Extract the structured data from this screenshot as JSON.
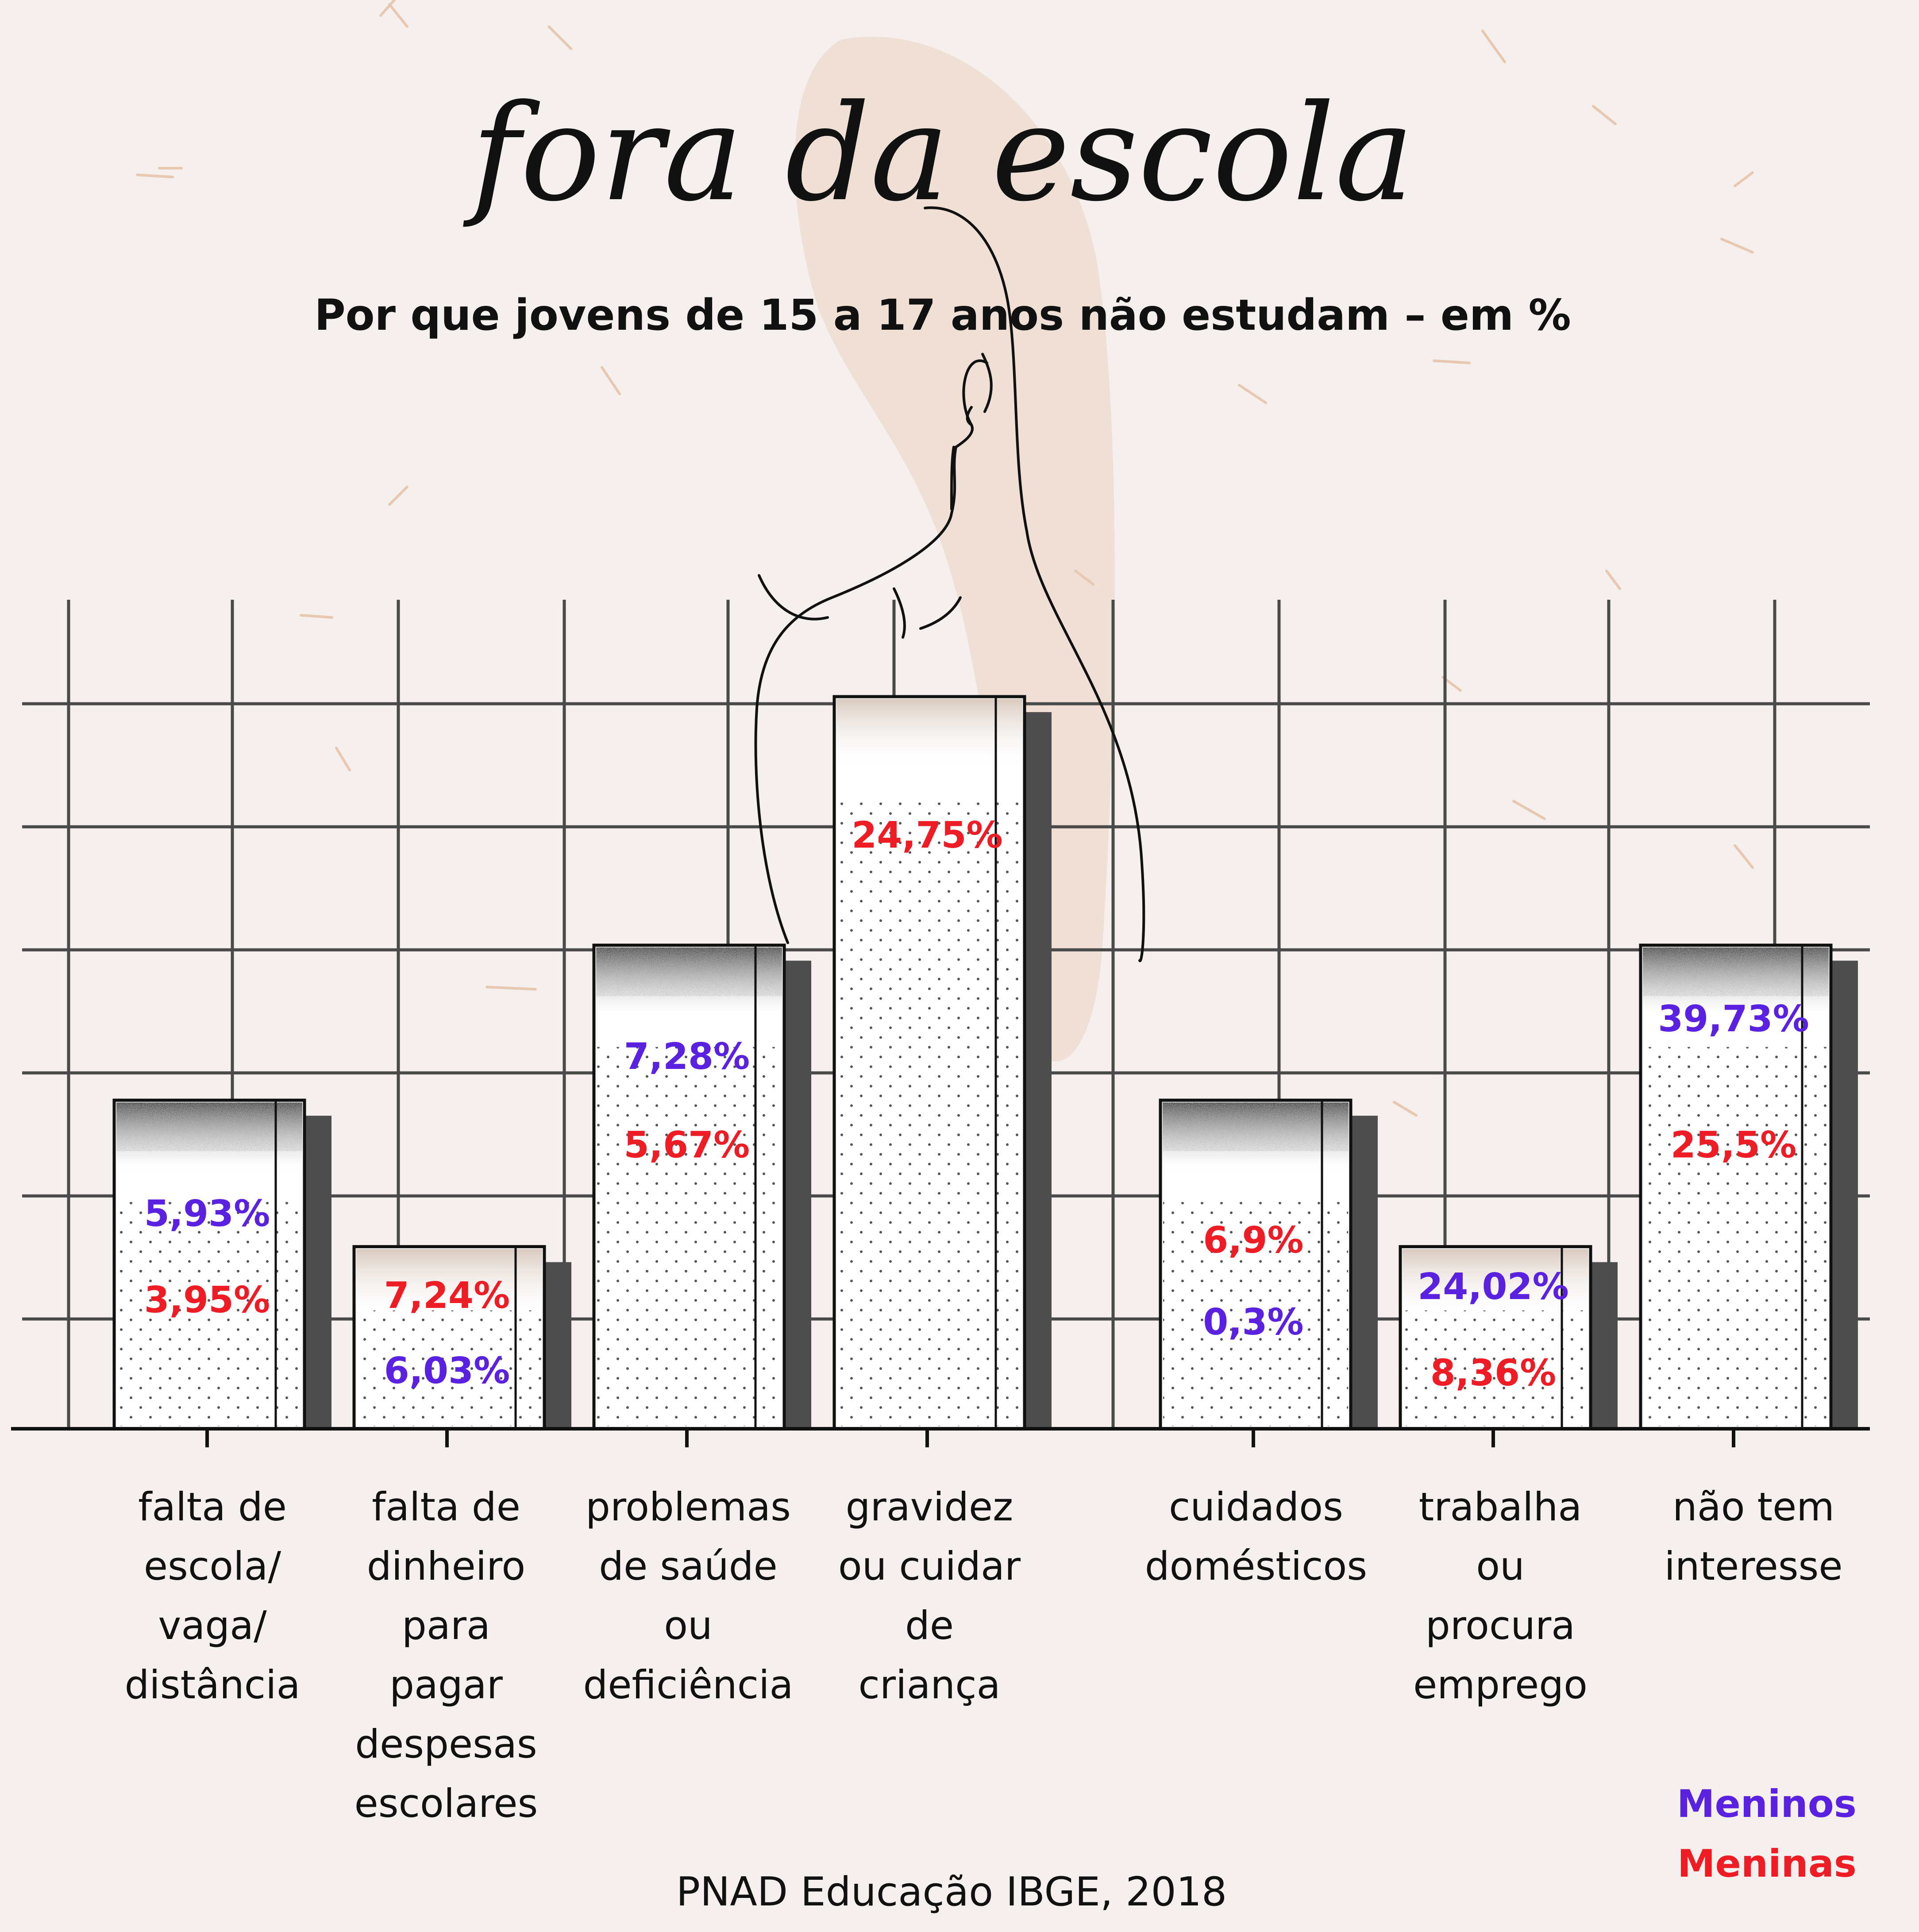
{
  "title": "fora da escola",
  "subtitle": "Por que jovens de 15 a 17 anos não estudam – em %",
  "source": "PNAD Educação IBGE, 2018",
  "colors": {
    "background": "#f5f0ee",
    "boys": "#5b21e0",
    "girls": "#ee1c25",
    "grid": "#4a4a4a",
    "axis": "#111111",
    "decor": "#eddccf"
  },
  "legend": {
    "placement": "bottom-right",
    "items": [
      {
        "label": "Meninos",
        "color": "#5b21e0"
      },
      {
        "label": "Meninas",
        "color": "#ee1c25"
      }
    ]
  },
  "chart_data": {
    "type": "bar",
    "grid": true,
    "categories": [
      [
        "falta de",
        "escola/",
        "vaga/",
        "distância"
      ],
      [
        "falta de",
        "dinheiro",
        "para",
        "pagar",
        "despesas",
        "escolares"
      ],
      [
        "problemas",
        "de saúde",
        "ou",
        "deficiência"
      ],
      [
        "gravidez",
        "ou cuidar",
        "de",
        "criança"
      ],
      [
        "cuidados",
        "domésticos"
      ],
      [
        "trabalha",
        "ou",
        "procura",
        "emprego"
      ],
      [
        "não tem",
        "interesse"
      ]
    ],
    "bar_heights_relative": [
      2.67,
      1.48,
      3.93,
      5.95,
      2.67,
      1.48,
      3.93
    ],
    "series": [
      {
        "name": "Meninos",
        "values": [
          5.93,
          6.03,
          7.28,
          null,
          0.3,
          24.02,
          39.73
        ],
        "labels": [
          "5,93%",
          "6,03%",
          "7,28%",
          "",
          "0,3%",
          "24,02%",
          "39,73%"
        ]
      },
      {
        "name": "Meninas",
        "values": [
          3.95,
          7.24,
          5.67,
          24.75,
          6.9,
          8.36,
          25.5
        ],
        "labels": [
          "3,95%",
          "7,24%",
          "5,67%",
          "24,75%",
          "6,9%",
          "8,36%",
          "25,5%"
        ]
      }
    ]
  }
}
